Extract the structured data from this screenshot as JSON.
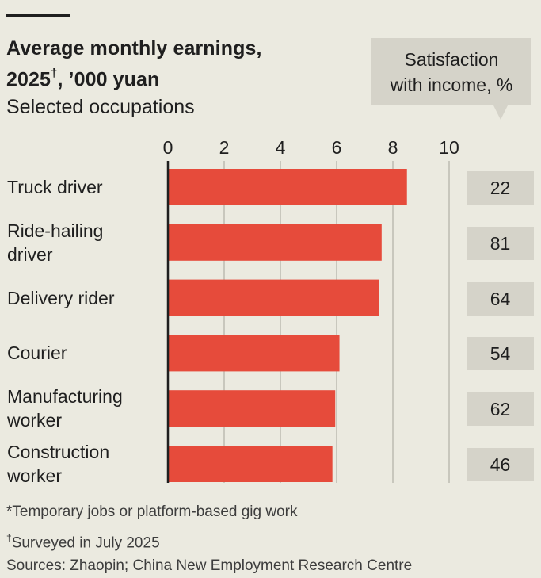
{
  "header": {
    "title_line1": "Average monthly earnings,",
    "title_line2_year": "2025",
    "title_line2_mark": "†",
    "title_line2_rest": ", ’000 yuan",
    "subtitle": "Selected occupations"
  },
  "satisfaction_header": {
    "line1": "Satisfaction",
    "line2": "with income, %"
  },
  "footnotes": {
    "note1": "*Temporary jobs or platform-based gig work",
    "note2_mark": "†",
    "note2": "Surveyed in July 2025",
    "sources": "Sources: Zhaopin; China New Employment Research Centre"
  },
  "colors": {
    "bar": "#e64b3b",
    "background": "#ebeae0",
    "gridline": "#bdbbb1",
    "axis": "#1f1f1f",
    "satisfaction_box": "#d5d3c9"
  },
  "chart_data": {
    "type": "bar",
    "orientation": "horizontal",
    "title": "Average monthly earnings, 2025†, ’000 yuan",
    "subtitle": "Selected occupations",
    "categories": [
      "Truck driver",
      "Ride-hailing driver",
      "Delivery rider",
      "Courier",
      "Manufacturing worker",
      "Construction worker"
    ],
    "category_lines": [
      [
        "Truck driver"
      ],
      [
        "Ride-hailing",
        "driver"
      ],
      [
        "Delivery rider"
      ],
      [
        "Courier"
      ],
      [
        "Manufacturing",
        "worker"
      ],
      [
        "Construction",
        "worker"
      ]
    ],
    "values": [
      8.5,
      7.6,
      7.5,
      6.1,
      5.95,
      5.85
    ],
    "xlim": [
      0,
      10
    ],
    "xticks": [
      "0",
      "2",
      "4",
      "6",
      "8",
      "10"
    ],
    "grid": true,
    "satisfaction": {
      "label": "Satisfaction with income, %",
      "values": [
        "22",
        "81",
        "64",
        "54",
        "62",
        "46"
      ]
    }
  }
}
